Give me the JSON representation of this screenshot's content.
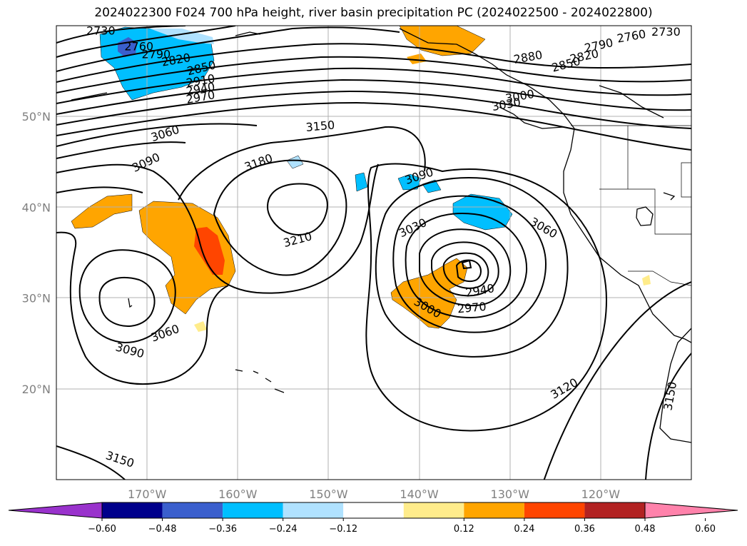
{
  "title": "2024022300 F024 700 hPa height, river basin precipitation PC (2024022500 - 2024022800)",
  "map": {
    "lon_range": [
      -180,
      -110
    ],
    "lat_range": [
      10,
      60
    ],
    "lat_labels": [
      {
        "lat": 50,
        "label": "50°N"
      },
      {
        "lat": 40,
        "label": "40°N"
      },
      {
        "lat": 30,
        "label": "30°N"
      },
      {
        "lat": 20,
        "label": "20°N"
      }
    ],
    "lon_labels": [
      {
        "lon": -170,
        "label": "170°W"
      },
      {
        "lon": -160,
        "label": "160°W"
      },
      {
        "lon": -150,
        "label": "150°W"
      },
      {
        "lon": -140,
        "label": "140°W"
      },
      {
        "lon": -130,
        "label": "130°W"
      },
      {
        "lon": -120,
        "label": "120°W"
      }
    ],
    "contour_labels": [
      {
        "text": "2730",
        "lon": -175.1,
        "lat": 59.4,
        "rot": 0
      },
      {
        "text": "2760",
        "lon": -170.9,
        "lat": 57.7,
        "rot": 0
      },
      {
        "text": "2790",
        "lon": -169.0,
        "lat": 56.8,
        "rot": 0
      },
      {
        "text": "2820",
        "lon": -166.8,
        "lat": 56.2,
        "rot": -10
      },
      {
        "text": "2850",
        "lon": -164.0,
        "lat": 55.3,
        "rot": -14
      },
      {
        "text": "2910",
        "lon": -164.1,
        "lat": 53.9,
        "rot": -10
      },
      {
        "text": "2940",
        "lon": -164.1,
        "lat": 53.0,
        "rot": -10
      },
      {
        "text": "2970",
        "lon": -164.1,
        "lat": 52.1,
        "rot": -10
      },
      {
        "text": "3060",
        "lon": -168.0,
        "lat": 48.1,
        "rot": -18
      },
      {
        "text": "3090",
        "lon": -170.1,
        "lat": 44.9,
        "rot": -25
      },
      {
        "text": "3150",
        "lon": -150.9,
        "lat": 48.9,
        "rot": -5
      },
      {
        "text": "3180",
        "lon": -157.7,
        "lat": 44.9,
        "rot": -20
      },
      {
        "text": "3210",
        "lon": -153.4,
        "lat": 36.4,
        "rot": -15
      },
      {
        "text": "3090",
        "lon": -140.0,
        "lat": 43.4,
        "rot": -18
      },
      {
        "text": "3030",
        "lon": -140.7,
        "lat": 37.7,
        "rot": -25
      },
      {
        "text": "3060",
        "lon": -126.3,
        "lat": 37.7,
        "rot": 30
      },
      {
        "text": "2940",
        "lon": -133.3,
        "lat": 30.8,
        "rot": -10
      },
      {
        "text": "2970",
        "lon": -134.2,
        "lat": 28.9,
        "rot": -5
      },
      {
        "text": "3000",
        "lon": -139.1,
        "lat": 28.9,
        "rot": 30
      },
      {
        "text": "3060",
        "lon": -168.0,
        "lat": 26.1,
        "rot": -20
      },
      {
        "text": "3090",
        "lon": -171.9,
        "lat": 24.2,
        "rot": 15
      },
      {
        "text": "3120",
        "lon": -124.0,
        "lat": 20.0,
        "rot": -30
      },
      {
        "text": "3150",
        "lon": -173.0,
        "lat": 12.2,
        "rot": 18
      },
      {
        "text": "3150",
        "lon": -112.3,
        "lat": 19.2,
        "rot": -80
      },
      {
        "text": "2730",
        "lon": -112.8,
        "lat": 59.3,
        "rot": 0
      },
      {
        "text": "2760",
        "lon": -116.6,
        "lat": 58.8,
        "rot": -10
      },
      {
        "text": "2790",
        "lon": -120.2,
        "lat": 57.8,
        "rot": -12
      },
      {
        "text": "2820",
        "lon": -121.8,
        "lat": 56.6,
        "rot": -12
      },
      {
        "text": "2850",
        "lon": -123.8,
        "lat": 55.7,
        "rot": -15
      },
      {
        "text": "2880",
        "lon": -128.0,
        "lat": 56.5,
        "rot": -10
      },
      {
        "text": "3000",
        "lon": -128.9,
        "lat": 52.2,
        "rot": -10
      },
      {
        "text": "3030",
        "lon": -130.4,
        "lat": 51.3,
        "rot": -10
      }
    ]
  },
  "colorbar": {
    "colors": {
      "lt_-0.60": "#9932CC",
      "-0.60_-0.48": "#00008B",
      "-0.48_-0.36": "#3A5FCD",
      "-0.36_-0.24": "#00BFFF",
      "-0.24_-0.12": "#B0E2FF",
      "-0.12_0.12": "#FFFFFF",
      "0.12_0.24": "#FFEC8B",
      "0.24_0.36": "#FFA500",
      "0.36_0.48": "#FF4500",
      "0.48_0.60": "#B22222",
      "gt_0.60": "#FF82AB"
    },
    "tick_labels": [
      "−0.60",
      "−0.48",
      "−0.36",
      "−0.24",
      "−0.12",
      "0.12",
      "0.24",
      "0.36",
      "0.48",
      "0.60"
    ]
  }
}
